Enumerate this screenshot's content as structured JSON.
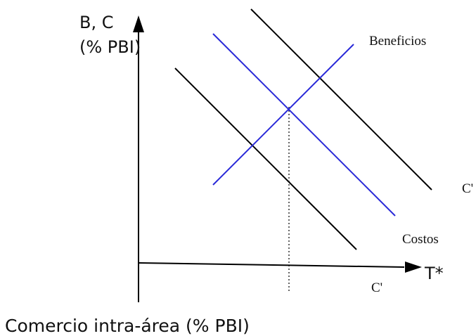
{
  "diagram": {
    "y_axis_label_line1": "B, C",
    "y_axis_label_line2": "(% PBI)",
    "x_axis_end_label": "T*",
    "x_axis_caption": "Comercio intra-área (% PBI)",
    "benefits_label": "Beneficios",
    "costs_label": "Costos",
    "upper_shifted_cost_label": "C'",
    "lower_shifted_cost_label": "C'",
    "colors": {
      "axes": "#000000",
      "cost_curves_shifted": "#000000",
      "cost_curve_main": "#2a2ad8",
      "benefit_curve": "#2a2ad8",
      "guide_line": "#000000"
    }
  }
}
